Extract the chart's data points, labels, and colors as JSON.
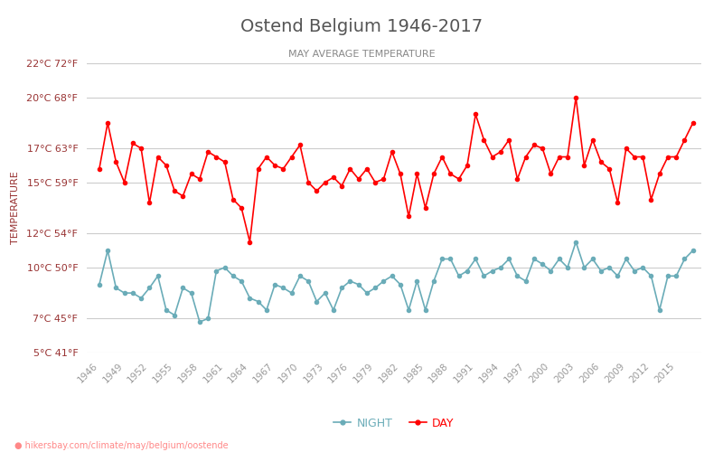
{
  "title": "Ostend Belgium 1946-2017",
  "subtitle": "MAY AVERAGE TEMPERATURE",
  "ylabel": "TEMPERATURE",
  "xlabel_url": "hikersbay.com/climate/may/belgium/oostende",
  "years": [
    1946,
    1947,
    1948,
    1949,
    1950,
    1951,
    1952,
    1953,
    1954,
    1955,
    1956,
    1957,
    1958,
    1959,
    1960,
    1961,
    1962,
    1963,
    1964,
    1965,
    1966,
    1967,
    1968,
    1969,
    1970,
    1971,
    1972,
    1973,
    1974,
    1975,
    1976,
    1977,
    1978,
    1979,
    1980,
    1981,
    1982,
    1983,
    1984,
    1985,
    1986,
    1987,
    1988,
    1989,
    1990,
    1991,
    1992,
    1993,
    1994,
    1995,
    1996,
    1997,
    1998,
    1999,
    2000,
    2001,
    2002,
    2003,
    2004,
    2005,
    2006,
    2007,
    2008,
    2009,
    2010,
    2011,
    2012,
    2013,
    2014,
    2015,
    2016,
    2017
  ],
  "day_temps": [
    15.8,
    18.5,
    16.2,
    15.0,
    17.3,
    17.0,
    13.8,
    16.5,
    16.0,
    14.5,
    14.2,
    15.5,
    15.2,
    16.8,
    16.5,
    16.2,
    14.0,
    13.5,
    11.5,
    15.8,
    16.5,
    16.0,
    15.8,
    16.5,
    17.2,
    15.0,
    14.5,
    15.0,
    15.3,
    14.8,
    15.8,
    15.2,
    15.8,
    15.0,
    15.2,
    16.8,
    15.5,
    13.0,
    15.5,
    13.5,
    15.5,
    16.5,
    15.5,
    15.2,
    16.0,
    19.0,
    17.5,
    16.5,
    16.8,
    17.5,
    15.2,
    16.5,
    17.2,
    17.0,
    15.5,
    16.5,
    16.5,
    20.0,
    16.0,
    17.5,
    16.2,
    15.8,
    13.8,
    17.0,
    16.5,
    16.5,
    14.0,
    15.5,
    16.5,
    16.5,
    17.5,
    18.5
  ],
  "night_temps": [
    9.0,
    11.0,
    8.8,
    8.5,
    8.5,
    8.2,
    8.8,
    9.5,
    7.5,
    7.2,
    8.8,
    8.5,
    6.8,
    7.0,
    9.8,
    10.0,
    9.5,
    9.2,
    8.2,
    8.0,
    7.5,
    9.0,
    8.8,
    8.5,
    9.5,
    9.2,
    8.0,
    8.5,
    7.5,
    8.8,
    9.2,
    9.0,
    8.5,
    8.8,
    9.2,
    9.5,
    9.0,
    7.5,
    9.2,
    7.5,
    9.2,
    10.5,
    10.5,
    9.5,
    9.8,
    10.5,
    9.5,
    9.8,
    10.0,
    10.5,
    9.5,
    9.2,
    10.5,
    10.2,
    9.8,
    10.5,
    10.0,
    11.5,
    10.0,
    10.5,
    9.8,
    10.0,
    9.5,
    10.5,
    9.8,
    10.0,
    9.5,
    7.5,
    9.5,
    9.5,
    10.5,
    11.0
  ],
  "day_color": "#ff0000",
  "night_color": "#6aacb8",
  "background_color": "#ffffff",
  "grid_color": "#cccccc",
  "title_color": "#555555",
  "subtitle_color": "#888888",
  "label_color": "#993333",
  "tick_color": "#999999",
  "ylim_min": 5,
  "ylim_max": 22,
  "yticks_c": [
    5,
    7,
    10,
    12,
    15,
    17,
    20,
    22
  ],
  "yticks_f": [
    41,
    45,
    50,
    54,
    59,
    63,
    68,
    72
  ],
  "xtick_years": [
    1946,
    1949,
    1952,
    1955,
    1958,
    1961,
    1964,
    1967,
    1970,
    1973,
    1976,
    1979,
    1982,
    1985,
    1988,
    1991,
    1994,
    1997,
    2000,
    2003,
    2006,
    2009,
    2012,
    2015
  ]
}
